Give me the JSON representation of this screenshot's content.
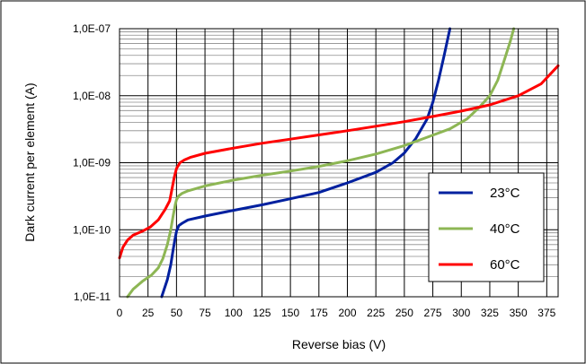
{
  "chart_data": {
    "type": "line",
    "title": "",
    "xlabel": "Reverse bias (V)",
    "ylabel": "Dark current per element (A)",
    "xlim": [
      0,
      385
    ],
    "ylim": [
      1e-11,
      1e-07
    ],
    "yscale": "log",
    "grid": true,
    "legend_position": "right, lower-middle",
    "x_ticks": [
      "0",
      "25",
      "50",
      "75",
      "100",
      "125",
      "150",
      "175",
      "200",
      "225",
      "250",
      "275",
      "300",
      "325",
      "350",
      "375"
    ],
    "y_ticks": [
      "1,0E-11",
      "1,0E-10",
      "1,0E-09",
      "1,0E-08",
      "1,0E-07"
    ],
    "series": [
      {
        "name": "23°C",
        "color": "#00209F",
        "x": [
          37,
          42,
          45,
          47,
          48.5,
          50,
          52,
          55,
          60,
          75,
          100,
          125,
          150,
          175,
          200,
          225,
          240,
          250,
          260,
          270,
          275,
          280,
          285,
          290
        ],
        "y": [
          1e-11,
          1.8e-11,
          3e-11,
          5e-11,
          7e-11,
          9.5e-11,
          1.15e-10,
          1.25e-10,
          1.4e-10,
          1.6e-10,
          1.95e-10,
          2.35e-10,
          2.9e-10,
          3.6e-10,
          5e-10,
          7.2e-10,
          1e-09,
          1.4e-09,
          2.3e-09,
          4.5e-09,
          8e-09,
          1.7e-08,
          4e-08,
          1e-07
        ]
      },
      {
        "name": "40°C",
        "color": "#8DB654",
        "x": [
          7,
          12,
          20,
          28,
          34,
          38,
          42,
          45,
          47,
          49,
          50,
          52,
          55,
          60,
          75,
          100,
          125,
          150,
          175,
          200,
          225,
          250,
          270,
          290,
          305,
          315,
          325,
          332,
          338,
          343,
          346
        ],
        "y": [
          1e-11,
          1.3e-11,
          1.7e-11,
          2.1e-11,
          2.7e-11,
          3.7e-11,
          6e-11,
          1e-10,
          1.6e-10,
          2.4e-10,
          2.8e-10,
          3.2e-10,
          3.5e-10,
          3.8e-10,
          4.5e-10,
          5.5e-10,
          6.5e-10,
          7.5e-10,
          8.8e-10,
          1.07e-09,
          1.35e-09,
          1.8e-09,
          2.4e-09,
          3.2e-09,
          4.5e-09,
          6.5e-09,
          1e-08,
          1.7e-08,
          3.5e-08,
          6.5e-08,
          1e-07
        ]
      },
      {
        "name": "60°C",
        "color": "#FF0000",
        "x": [
          0,
          3,
          7,
          12,
          20,
          27,
          34,
          40,
          44,
          46,
          48,
          50,
          53,
          57,
          62,
          75,
          100,
          125,
          150,
          175,
          200,
          225,
          250,
          275,
          300,
          325,
          350,
          370,
          385
        ],
        "y": [
          3.8e-11,
          5.5e-11,
          7e-11,
          8.3e-11,
          9.5e-11,
          1.1e-10,
          1.4e-10,
          2e-10,
          2.7e-10,
          4e-10,
          6e-10,
          8.2e-10,
          1e-09,
          1.1e-09,
          1.2e-09,
          1.38e-09,
          1.65e-09,
          1.95e-09,
          2.25e-09,
          2.6e-09,
          3e-09,
          3.5e-09,
          4.1e-09,
          4.9e-09,
          5.9e-09,
          7.3e-09,
          1e-08,
          1.5e-08,
          2.8e-08
        ]
      }
    ]
  }
}
